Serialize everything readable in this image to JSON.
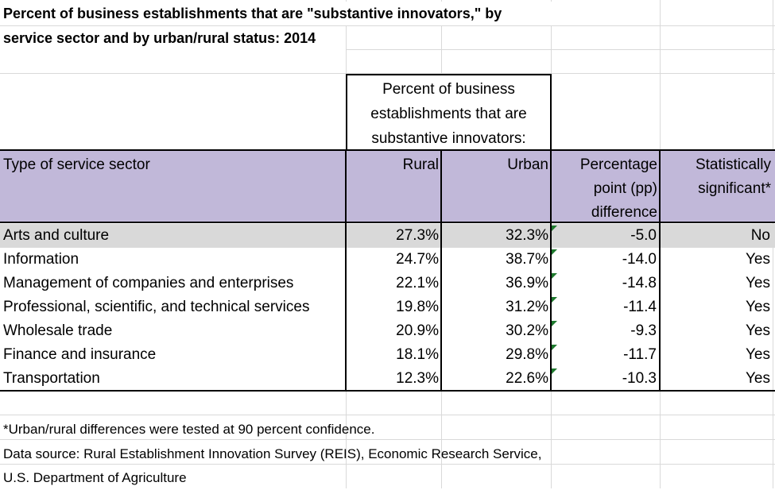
{
  "title": {
    "line1": "Percent of business establishments that are \"substantive innovators,\" by",
    "line2": "service sector and by urban/rural status: 2014"
  },
  "group_header": {
    "line1": "Percent of business",
    "line2": "establishments that are",
    "line3": "substantive innovators:"
  },
  "columns": {
    "sector": "Type of service sector",
    "rural": "Rural",
    "urban": "Urban",
    "diff_line1": "Percentage",
    "diff_line2": "point (pp)",
    "diff_line3": "difference",
    "sig_line1": "Statistically",
    "sig_line2": "significant*"
  },
  "rows": [
    {
      "sector": "Arts and culture",
      "rural": "27.3%",
      "urban": "32.3%",
      "diff": "-5.0",
      "sig": "No"
    },
    {
      "sector": "Information",
      "rural": "24.7%",
      "urban": "38.7%",
      "diff": "-14.0",
      "sig": "Yes"
    },
    {
      "sector": "Management of companies and enterprises",
      "rural": "22.1%",
      "urban": "36.9%",
      "diff": "-14.8",
      "sig": "Yes"
    },
    {
      "sector": "Professional, scientific, and technical services",
      "rural": "19.8%",
      "urban": "31.2%",
      "diff": "-11.4",
      "sig": "Yes"
    },
    {
      "sector": "Wholesale trade",
      "rural": "20.9%",
      "urban": "30.2%",
      "diff": "-9.3",
      "sig": "Yes"
    },
    {
      "sector": "Finance and insurance",
      "rural": "18.1%",
      "urban": "29.8%",
      "diff": "-11.7",
      "sig": "Yes"
    },
    {
      "sector": "Transportation",
      "rural": "12.3%",
      "urban": "22.6%",
      "diff": "-10.3",
      "sig": "Yes"
    }
  ],
  "notes": {
    "footnote": "*Urban/rural differences were tested at 90 percent confidence.",
    "source_line1": "Data source: Rural Establishment Innovation Survey (REIS), Economic Research Service,",
    "source_line2": "U.S. Department of Agriculture"
  },
  "colors": {
    "header_band": "#c1b8d9",
    "row_shade": "#d9d9d9",
    "error_marker": "#1e7a2e"
  }
}
